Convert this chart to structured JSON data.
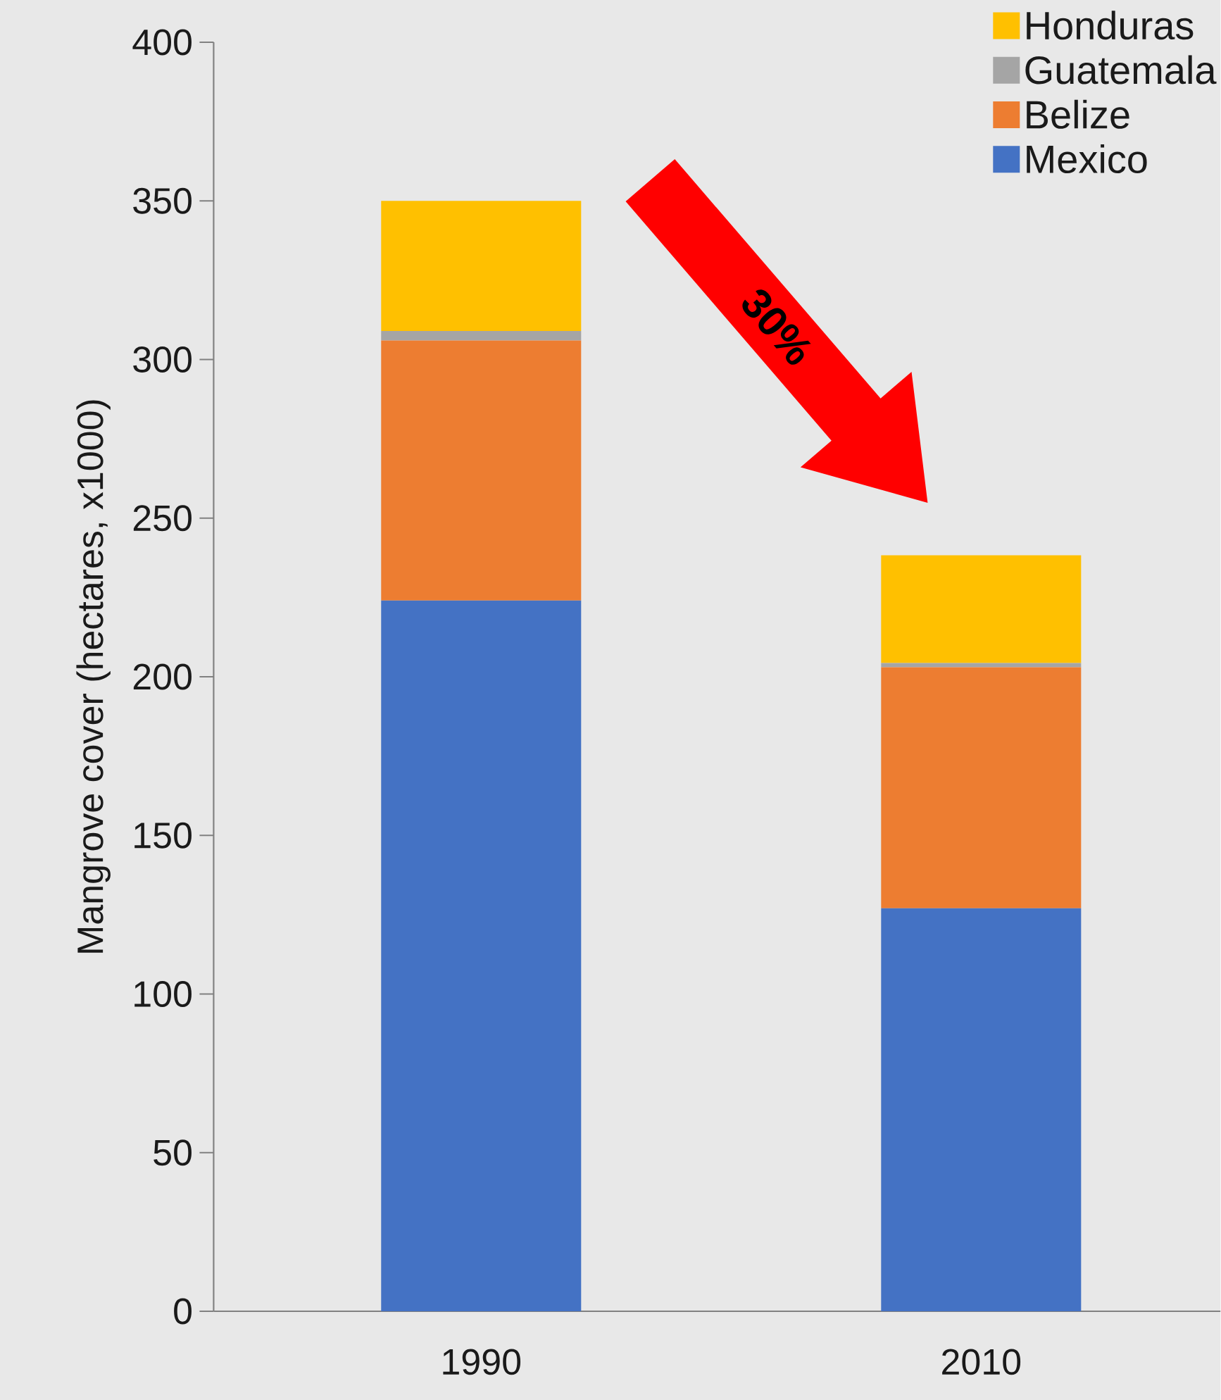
{
  "chart_data": {
    "type": "bar",
    "stacked": true,
    "ylabel": "Mangrove cover (hectares, x1000)",
    "categories": [
      "1990",
      "2010"
    ],
    "series": [
      {
        "name": "Mexico",
        "color": "#4472c4",
        "values": [
          224,
          127
        ]
      },
      {
        "name": "Belize",
        "color": "#ed7d31",
        "values": [
          82,
          76
        ]
      },
      {
        "name": "Guatemala",
        "color": "#a5a5a5",
        "values": [
          3,
          1.3
        ]
      },
      {
        "name": "Honduras",
        "color": "#ffc000",
        "values": [
          41,
          34
        ]
      }
    ],
    "ylim": [
      0,
      400
    ],
    "yticks": [
      0,
      50,
      100,
      150,
      200,
      250,
      300,
      350,
      400
    ],
    "legend": "top right",
    "annotations": [
      "30%"
    ]
  }
}
